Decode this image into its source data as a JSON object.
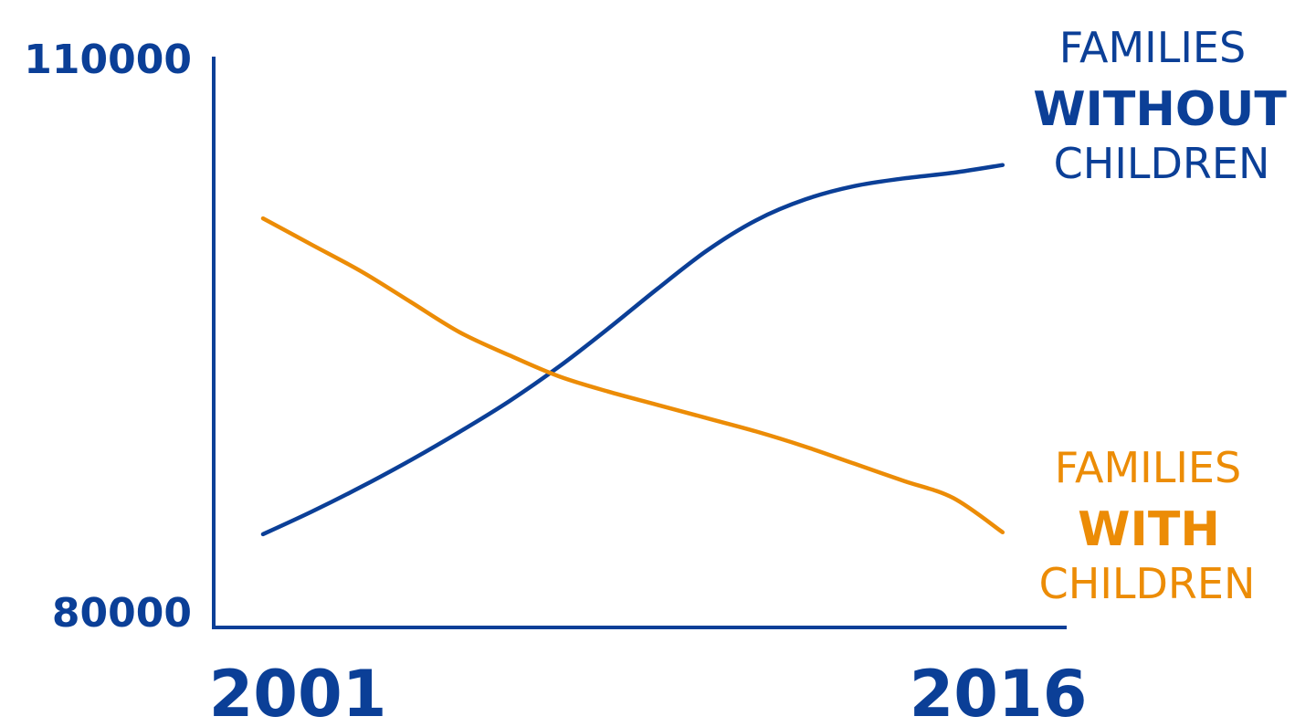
{
  "colors": {
    "blue": "#0b3f97",
    "orange": "#ec8c06",
    "axis": "#0b3f97"
  },
  "chart_data": {
    "type": "line",
    "x": [
      2001,
      2002,
      2003,
      2004,
      2005,
      2006,
      2007,
      2008,
      2009,
      2010,
      2011,
      2012,
      2013,
      2014,
      2015,
      2016
    ],
    "x_tick_labels": [
      "2001",
      "2016"
    ],
    "y_tick_labels": [
      "110000",
      "80000"
    ],
    "ylim": [
      80000,
      110000
    ],
    "xlim": [
      2000,
      2017.3
    ],
    "grid": false,
    "legend": "direct labels at line ends",
    "series": [
      {
        "key": "without",
        "label_top": "FAMILIES",
        "label_bold": "WITHOUT",
        "label_bottom": "CHILDREN",
        "color": "#0b3f97",
        "values": [
          84900,
          86100,
          87400,
          88800,
          90300,
          91900,
          93700,
          95700,
          97800,
          99800,
          101400,
          102500,
          103200,
          103600,
          103900,
          104300
        ]
      },
      {
        "key": "with",
        "label_top": "FAMILIES",
        "label_bold": "WITH",
        "label_bottom": "CHILDREN",
        "color": "#ec8c06",
        "values": [
          101500,
          100100,
          98700,
          97100,
          95500,
          94300,
          93200,
          92400,
          91700,
          91000,
          90300,
          89500,
          88600,
          87700,
          86800,
          85000
        ]
      }
    ]
  }
}
